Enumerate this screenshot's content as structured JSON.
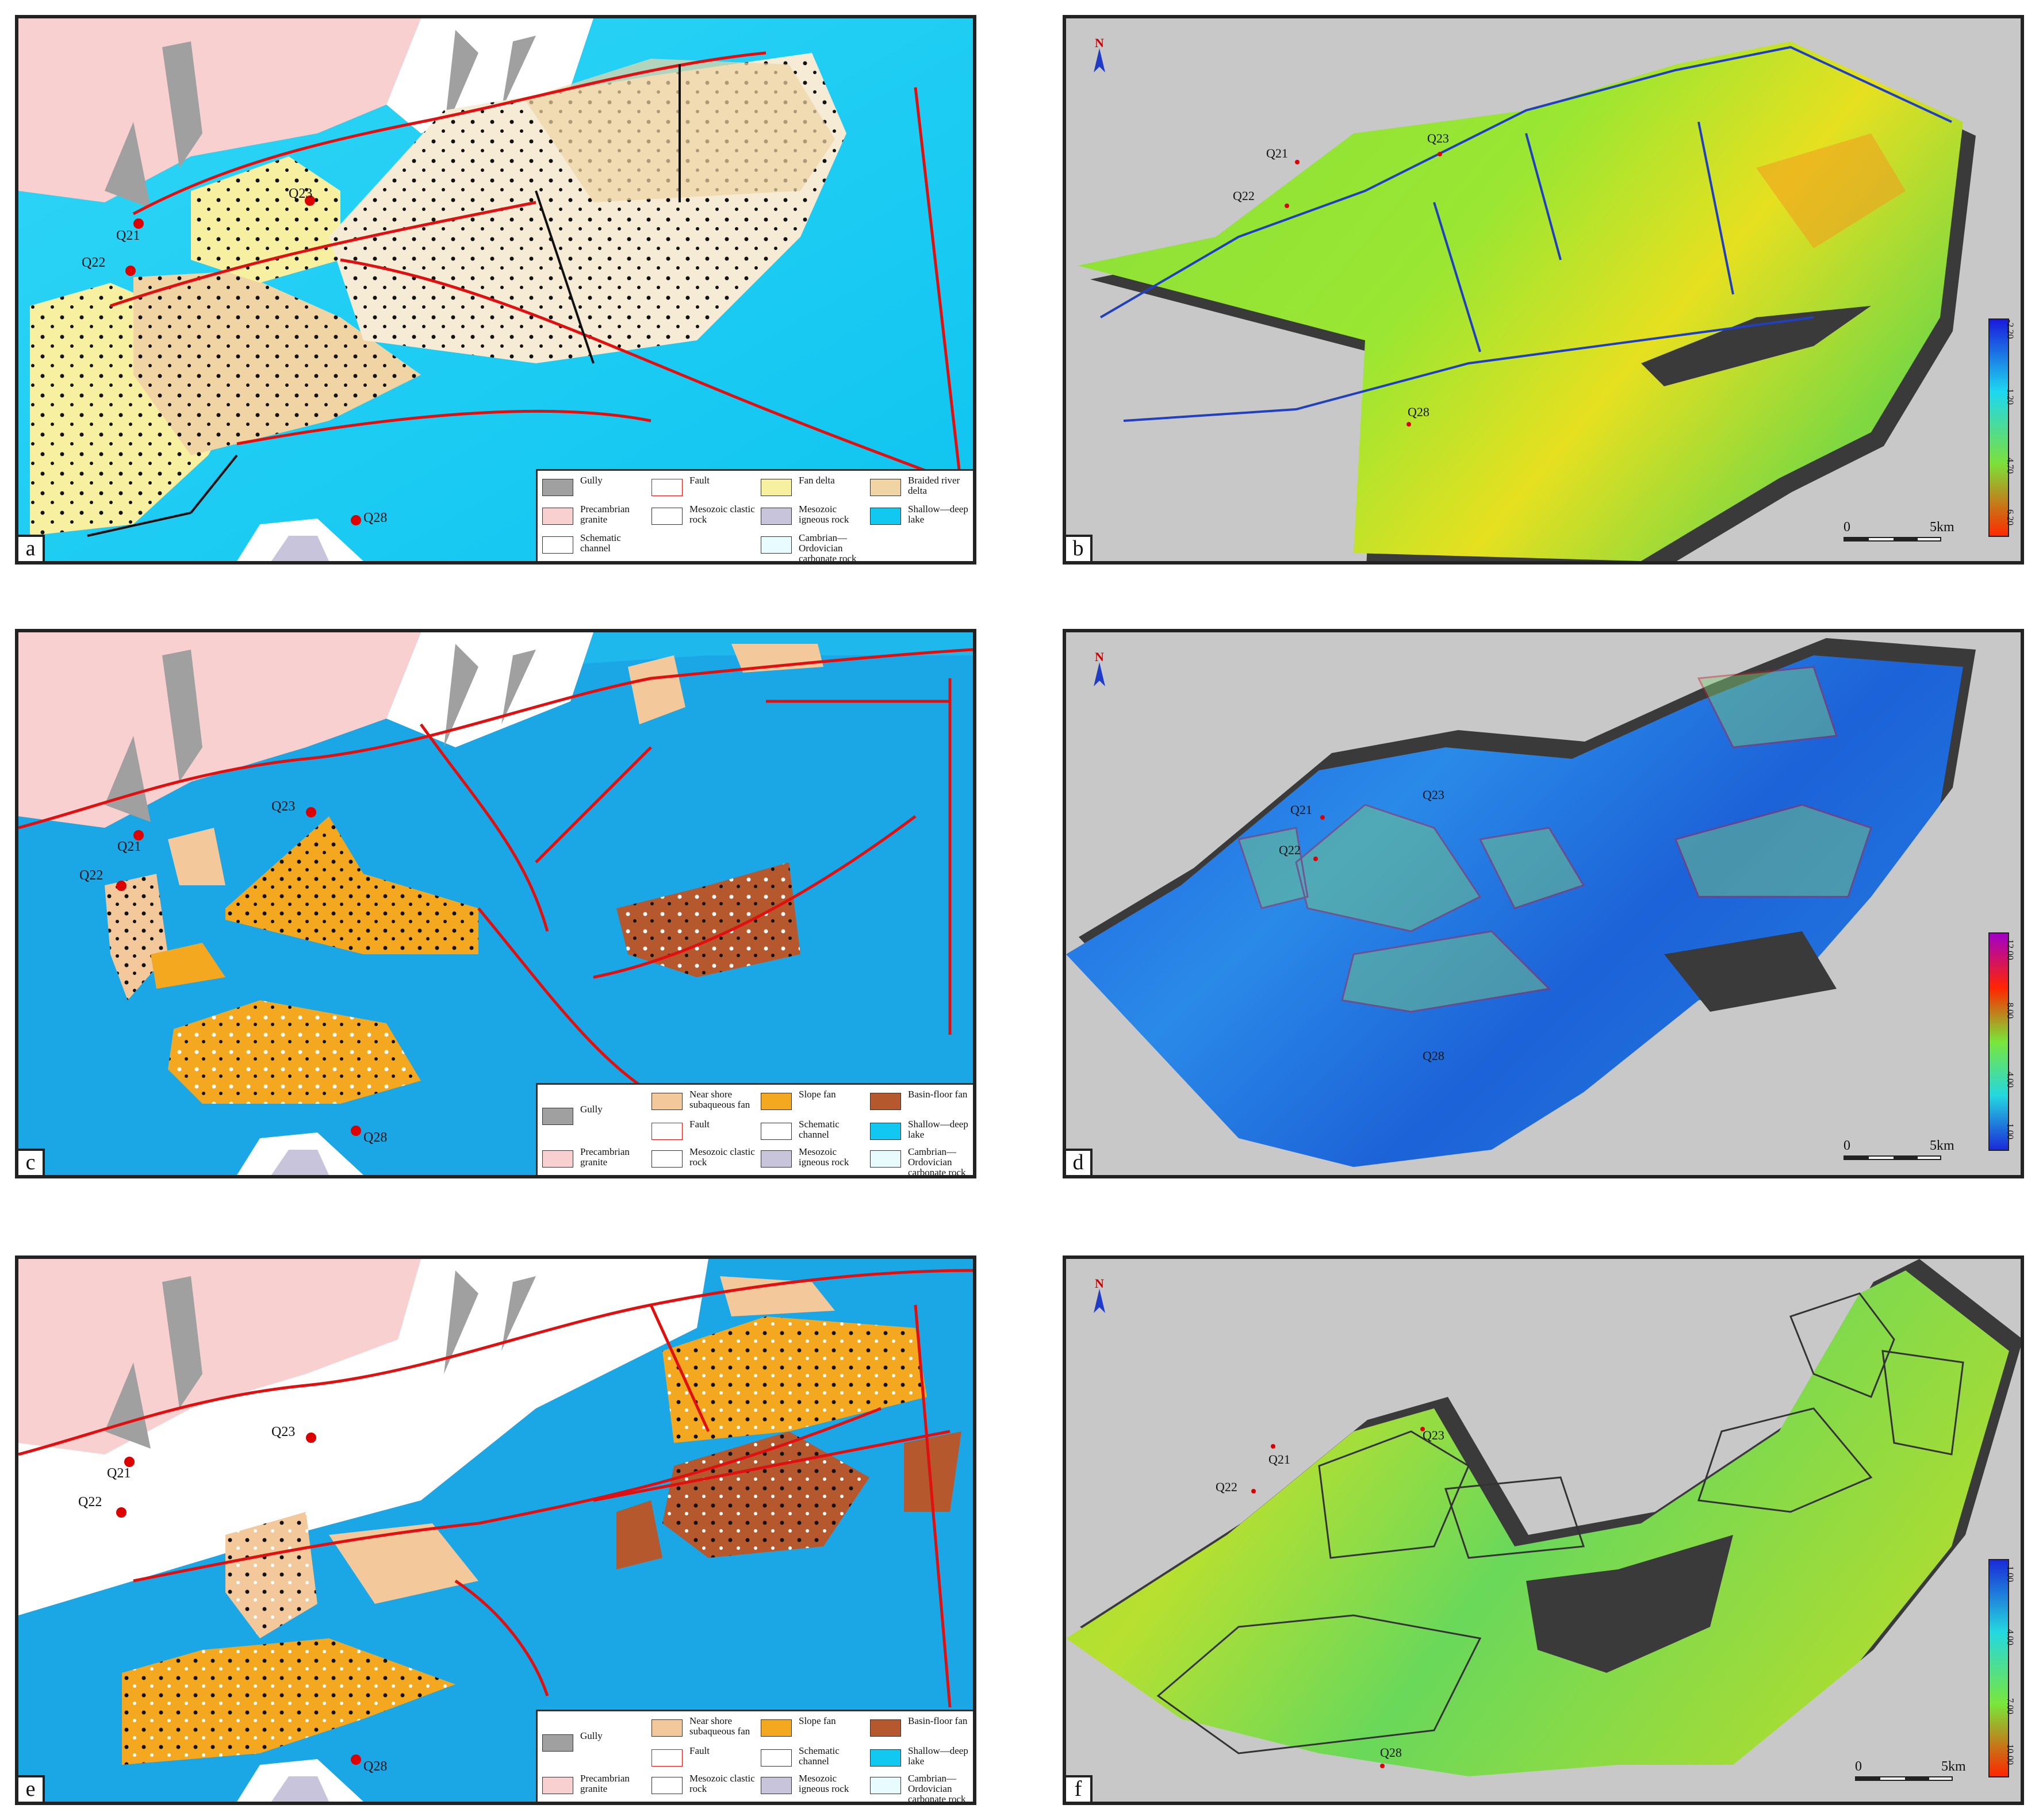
{
  "panels": {
    "a": {
      "label": "a",
      "wells": {
        "q21": "Q21",
        "q22": "Q22",
        "q23": "Q23",
        "q28": "Q28"
      }
    },
    "b": {
      "label": "b",
      "north": "N",
      "wells": {
        "q21": "Q21",
        "q22": "Q22",
        "q23": "Q23",
        "q28": "Q28"
      },
      "scale": {
        "zero": "0",
        "end": "5km"
      },
      "colorbar": {
        "ticks": [
          "-2.20",
          "1.20",
          "4.70",
          "6.20"
        ],
        "colors": [
          "#1a1adc",
          "#1dd8f0",
          "#7ce03a",
          "#ff2a00"
        ]
      }
    },
    "c": {
      "label": "c",
      "wells": {
        "q21": "Q21",
        "q22": "Q22",
        "q23": "Q23",
        "q28": "Q28"
      }
    },
    "d": {
      "label": "d",
      "north": "N",
      "wells": {
        "q21": "Q21",
        "q22": "Q22",
        "q23": "Q23",
        "q28": "Q28"
      },
      "scale": {
        "zero": "0",
        "end": "5km"
      },
      "colorbar": {
        "ticks": [
          "1.00",
          "4.00",
          "8.00",
          "12.00"
        ],
        "colors": [
          "#1a2ad8",
          "#24d8e0",
          "#79e63a",
          "#ff2500",
          "#a100c8"
        ]
      }
    },
    "e": {
      "label": "e",
      "wells": {
        "q21": "Q21",
        "q22": "Q22",
        "q23": "Q23",
        "q28": "Q28"
      }
    },
    "f": {
      "label": "f",
      "north": "N",
      "wells": {
        "q21": "Q21",
        "q22": "Q22",
        "q23": "Q23",
        "q28": "Q28"
      },
      "scale": {
        "zero": "0",
        "end": "5km"
      },
      "colorbar": {
        "ticks": [
          "1.00",
          "4.00",
          "7.00",
          "10.00"
        ],
        "colors": [
          "#1a2ad8",
          "#24d8e0",
          "#79e63a",
          "#ff2500"
        ]
      }
    }
  },
  "legend_a": {
    "items": [
      "Gully",
      "Fault",
      "Fan delta",
      "Braided river delta",
      "Precambrian granite",
      "Mesozoic clastic rock",
      "Mesozoic igneous rock",
      "Shallow—deep lake",
      "Schematic channel",
      "Cambrian—Ordovician carbonate rock"
    ]
  },
  "legend_ce": {
    "items": [
      "Gully",
      "Near shore subaqueous fan",
      "Slope fan",
      "Basin-floor fan",
      "Fault",
      "Schematic channel",
      "Shallow—deep lake",
      "Precambrian granite",
      "Mesozoic clastic rock",
      "Mesozoic igneous rock",
      "Cambrian—Ordovician carbonate rock"
    ]
  },
  "colors": {
    "granite": "#f8d0d0",
    "lake": "#10c8f0",
    "deeplake": "#1ba6e6",
    "fandelta": "#f7f0a0",
    "braided": "#f0d4a4",
    "nearshore": "#f3c89a",
    "slopefan": "#f4a820",
    "basinfloor": "#b5582e",
    "gully": "#a0a0a0",
    "fault": "#e01010",
    "mapgray": "#c8c8c8",
    "shadow": "#3a3a3a"
  }
}
